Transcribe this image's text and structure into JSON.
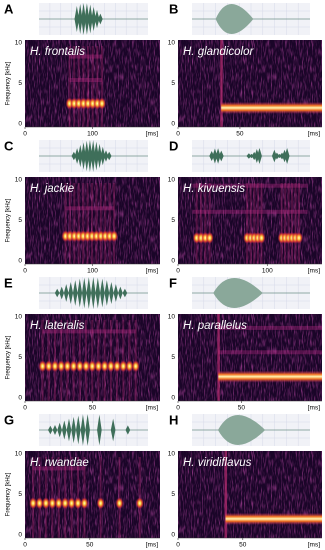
{
  "panels": [
    {
      "letter": "A",
      "species": "H. frontalis",
      "yticks": [
        10,
        5,
        0
      ],
      "ylabel": "Frequency [kHz]",
      "xticks": [
        0,
        100
      ],
      "xunit": "[ms]"
    },
    {
      "letter": "B",
      "species": "H. glandicolor",
      "yticks": [
        10,
        5,
        0
      ],
      "xticks": [
        0,
        50
      ],
      "xunit": "[ms]"
    },
    {
      "letter": "C",
      "species": "H. jackie",
      "yticks": [
        10,
        5,
        0
      ],
      "ylabel": "Frequency [kHz]",
      "xticks": [
        0,
        100
      ],
      "xunit": "[ms]"
    },
    {
      "letter": "D",
      "species": "H. kivuensis",
      "yticks": [
        10,
        5,
        0
      ],
      "xticks": [
        0,
        100
      ],
      "xunit": "[ms]"
    },
    {
      "letter": "E",
      "species": "H. lateralis",
      "yticks": [
        10,
        5,
        0
      ],
      "ylabel": "Frequency [kHz]",
      "xticks": [
        0,
        50
      ],
      "xunit": "[ms]"
    },
    {
      "letter": "F",
      "species": "H. parallelus",
      "yticks": [
        10,
        5,
        0
      ],
      "xticks": [
        0,
        50
      ],
      "xunit": "[ms]"
    },
    {
      "letter": "G",
      "species": "H. rwandae",
      "yticks": [
        10,
        5,
        0
      ],
      "ylabel": "Frequency [kHz]",
      "xticks": [
        0,
        50
      ],
      "xunit": "[ms]"
    },
    {
      "letter": "H",
      "species": "H. viridiflavus",
      "yticks": [
        10,
        5,
        0
      ],
      "xticks": [
        0,
        50
      ],
      "xunit": "[ms]"
    }
  ]
}
